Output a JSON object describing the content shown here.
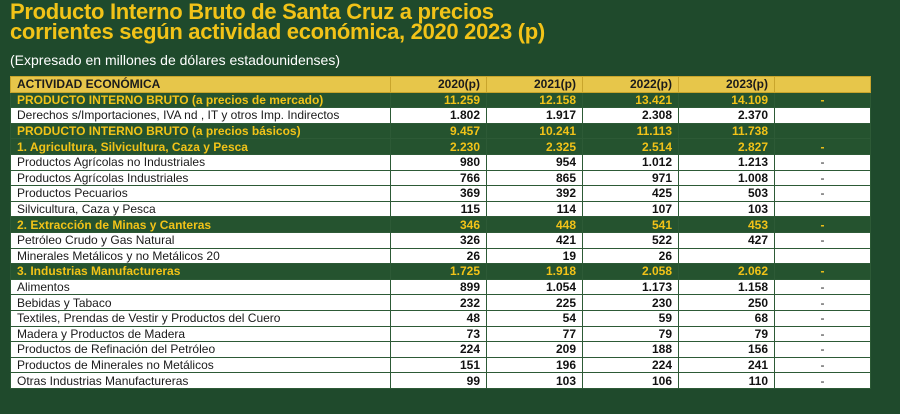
{
  "title": {
    "line1": "Producto Interno Bruto de Santa Cruz a precios",
    "line2": "corrientes según actividad económica, 2020 2023 (p)"
  },
  "subtitle": "(Expresado en millones de dólares estadounidenses)",
  "headers": [
    "ACTIVIDAD ECONÓMICA",
    "2020(p)",
    "2021(p)",
    "2022(p)",
    "2023(p)",
    ""
  ],
  "rows": [
    {
      "label": "PRODUCTO INTERNO BRUTO (a precios de mercado)",
      "values": [
        "11.259",
        "12.158",
        "13.421",
        "14.109"
      ],
      "extra": "-",
      "highlight": true
    },
    {
      "label": "Derechos s/Importaciones, IVA nd , IT y otros Imp. Indirectos",
      "values": [
        "1.802",
        "1.917",
        "2.308",
        "2.370"
      ],
      "extra": "",
      "highlight": false
    },
    {
      "label": "PRODUCTO INTERNO BRUTO (a precios básicos)",
      "values": [
        "9.457",
        "10.241",
        "11.113",
        "11.738"
      ],
      "extra": "",
      "highlight": true
    },
    {
      "label": "1. Agricultura, Silvicultura, Caza y Pesca",
      "values": [
        "2.230",
        "2.325",
        "2.514",
        "2.827"
      ],
      "extra": "-",
      "highlight": true
    },
    {
      "label": "Productos Agrícolas no Industriales",
      "values": [
        "980",
        "954",
        "1.012",
        "1.213"
      ],
      "extra": "-",
      "highlight": false
    },
    {
      "label": "Productos Agrícolas Industriales",
      "values": [
        "766",
        "865",
        "971",
        "1.008"
      ],
      "extra": "-",
      "highlight": false
    },
    {
      "label": "Productos Pecuarios",
      "values": [
        "369",
        "392",
        "425",
        "503"
      ],
      "extra": "-",
      "highlight": false
    },
    {
      "label": "Silvicultura, Caza y Pesca",
      "values": [
        "115",
        "114",
        "107",
        "103"
      ],
      "extra": "",
      "highlight": false
    },
    {
      "label": "2. Extracción de Minas y Canteras",
      "values": [
        "346",
        "448",
        "541",
        "453"
      ],
      "extra": "-",
      "highlight": true
    },
    {
      "label": "Petróleo Crudo y Gas Natural",
      "values": [
        "326",
        "421",
        "522",
        "427"
      ],
      "extra": "-",
      "highlight": false
    },
    {
      "label": "Minerales Metálicos y no Metálicos 20",
      "values": [
        "26",
        "19",
        "26",
        ""
      ],
      "extra": "",
      "highlight": false
    },
    {
      "label": "3. Industrias Manufactureras",
      "values": [
        "1.725",
        "1.918",
        "2.058",
        "2.062"
      ],
      "extra": "-",
      "highlight": true
    },
    {
      "label": "Alimentos",
      "values": [
        "899",
        "1.054",
        "1.173",
        "1.158"
      ],
      "extra": "-",
      "highlight": false
    },
    {
      "label": "Bebidas y Tabaco",
      "values": [
        "232",
        "225",
        "230",
        "250"
      ],
      "extra": "-",
      "highlight": false
    },
    {
      "label": "Textiles, Prendas de Vestir y Productos del Cuero",
      "values": [
        "48",
        "54",
        "59",
        "68"
      ],
      "extra": "-",
      "highlight": false
    },
    {
      "label": "Madera y Productos de Madera",
      "values": [
        "73",
        "77",
        "79",
        "79"
      ],
      "extra": "-",
      "highlight": false
    },
    {
      "label": "Productos de Refinación del Petróleo",
      "values": [
        "224",
        "209",
        "188",
        "156"
      ],
      "extra": "-",
      "highlight": false
    },
    {
      "label": "Productos de Minerales no Metálicos",
      "values": [
        "151",
        "196",
        "224",
        "241"
      ],
      "extra": "-",
      "highlight": false
    },
    {
      "label": "Otras Industrias Manufactureras",
      "values": [
        "99",
        "103",
        "106",
        "110"
      ],
      "extra": "-",
      "highlight": false
    }
  ],
  "colors": {
    "background": "#1f4a2c",
    "accent": "#f2c318",
    "header": "#e7c64a"
  }
}
